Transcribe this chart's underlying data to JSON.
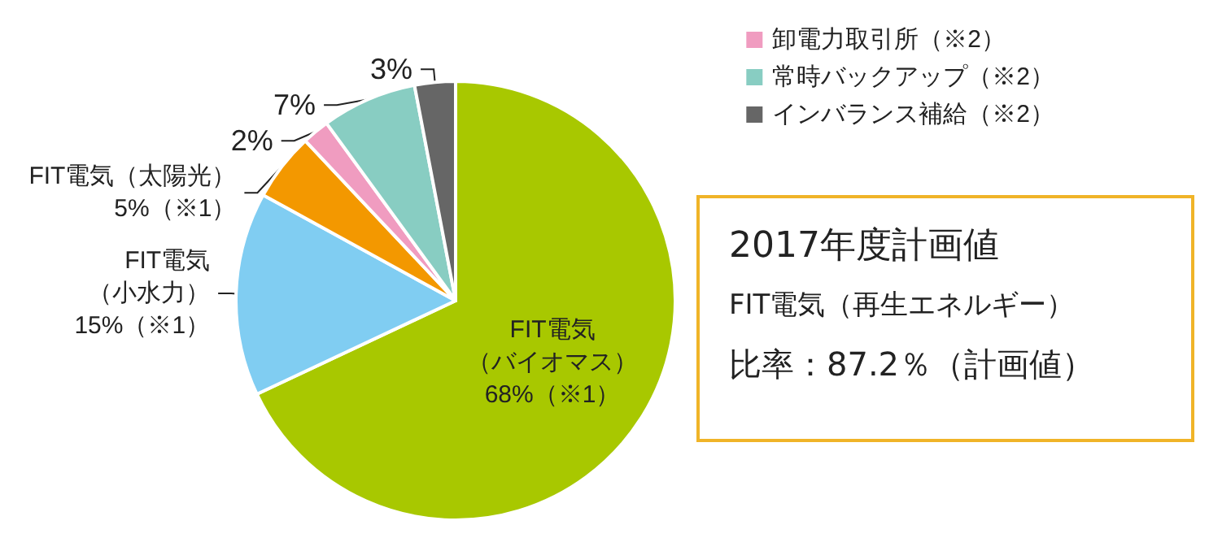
{
  "chart_data": [
    {
      "type": "pie",
      "categories": [
        null,
        null,
        null,
        "卸電力取引所（※2）",
        "常時バックアップ（※2）",
        "インバランス補給（※2）"
      ],
      "values": [
        68,
        15,
        5,
        2,
        7,
        3
      ],
      "colors": [
        "#a8c800",
        "#80cdf2",
        "#f39800",
        "#f09cc0",
        "#88cdc2",
        "#666666"
      ],
      "value_labels": [
        "FIT電気（バイオマス）68%（※1）",
        "FIT電気（小水力）15%（※1）",
        "FIT電気（太陽光）5%（※1）",
        "2%",
        "7%",
        "3%"
      ],
      "legend": "top right"
    },
    {
      "type": "other",
      "title": "2017年度計画値",
      "subtitle": "FIT電気（再生エネルギー）",
      "annotations": [
        "比率：87.2％（計画値）"
      ]
    }
  ]
}
